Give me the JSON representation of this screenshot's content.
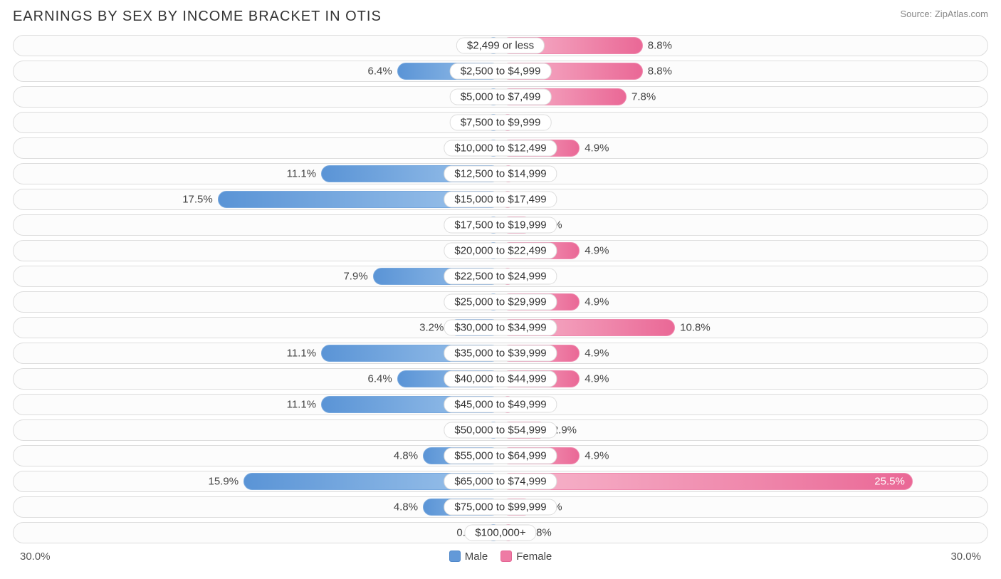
{
  "title": "EARNINGS BY SEX BY INCOME BRACKET IN OTIS",
  "source": "Source: ZipAtlas.com",
  "axis_max_label": "30.0%",
  "axis_max_value": 30.0,
  "legend": {
    "male": "Male",
    "female": "Female"
  },
  "bar_min_pct": 3.0,
  "colors": {
    "male_start": "#9ec4eb",
    "male_end": "#5a94d6",
    "female_start": "#f7b8cd",
    "female_end": "#ea6896",
    "track_border": "#dddddd",
    "text": "#444444"
  },
  "rows": [
    {
      "label": "$2,499 or less",
      "male": 0.0,
      "female": 8.8
    },
    {
      "label": "$2,500 to $4,999",
      "male": 6.4,
      "female": 8.8
    },
    {
      "label": "$5,000 to $7,499",
      "male": 0.0,
      "female": 7.8
    },
    {
      "label": "$7,500 to $9,999",
      "male": 0.0,
      "female": 0.0
    },
    {
      "label": "$10,000 to $12,499",
      "male": 0.0,
      "female": 4.9
    },
    {
      "label": "$12,500 to $14,999",
      "male": 11.1,
      "female": 0.98
    },
    {
      "label": "$15,000 to $17,499",
      "male": 17.5,
      "female": 0.0
    },
    {
      "label": "$17,500 to $19,999",
      "male": 0.0,
      "female": 2.0
    },
    {
      "label": "$20,000 to $22,499",
      "male": 0.0,
      "female": 4.9
    },
    {
      "label": "$22,500 to $24,999",
      "male": 7.9,
      "female": 0.0
    },
    {
      "label": "$25,000 to $29,999",
      "male": 0.0,
      "female": 4.9
    },
    {
      "label": "$30,000 to $34,999",
      "male": 3.2,
      "female": 10.8
    },
    {
      "label": "$35,000 to $39,999",
      "male": 11.1,
      "female": 4.9
    },
    {
      "label": "$40,000 to $44,999",
      "male": 6.4,
      "female": 4.9
    },
    {
      "label": "$45,000 to $49,999",
      "male": 11.1,
      "female": 0.0
    },
    {
      "label": "$50,000 to $54,999",
      "male": 0.0,
      "female": 2.9
    },
    {
      "label": "$55,000 to $64,999",
      "male": 4.8,
      "female": 4.9
    },
    {
      "label": "$65,000 to $74,999",
      "male": 15.9,
      "female": 25.5
    },
    {
      "label": "$75,000 to $99,999",
      "male": 4.8,
      "female": 2.0
    },
    {
      "label": "$100,000+",
      "male": 0.0,
      "female": 0.98
    }
  ]
}
